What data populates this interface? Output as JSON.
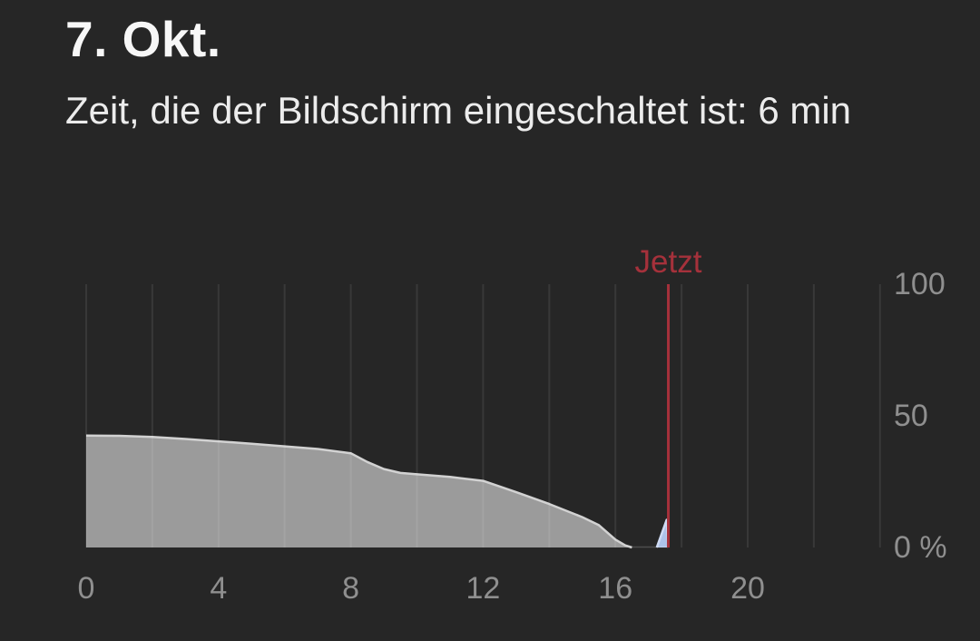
{
  "header": {
    "title": "7. Okt.",
    "subtitle": "Zeit, die der Bildschirm eingeschaltet ist: 6 min"
  },
  "chart_data": {
    "type": "area",
    "title": "7. Okt.",
    "subtitle": "Zeit, die der Bildschirm eingeschaltet ist: 6 min",
    "x_axis": {
      "range_hours": [
        0,
        24
      ],
      "tick_hours": [
        0,
        4,
        8,
        12,
        16,
        20
      ],
      "tick_labels": [
        "0",
        "4",
        "8",
        "12",
        "16",
        "20"
      ],
      "gridline_step_hours": 2,
      "grid": true
    },
    "y_axis": {
      "range_percent": [
        0,
        100
      ],
      "tick_values": [
        100,
        50,
        0
      ],
      "tick_labels": [
        "100",
        "50",
        "0 %"
      ],
      "label_side": "right"
    },
    "now_marker": {
      "label": "Jetzt",
      "hour": 17.6
    },
    "series": [
      {
        "name": "battery-level",
        "fill": "#9b9b9b",
        "edge": "#d2d2d2",
        "points": [
          [
            0,
            42.5
          ],
          [
            1,
            42.4
          ],
          [
            2,
            42.0
          ],
          [
            3,
            41.2
          ],
          [
            4,
            40.3
          ],
          [
            5,
            39.4
          ],
          [
            6,
            38.4
          ],
          [
            7,
            37.4
          ],
          [
            8,
            35.8
          ],
          [
            8.5,
            32.5
          ],
          [
            9,
            29.8
          ],
          [
            9.5,
            28.3
          ],
          [
            10,
            27.8
          ],
          [
            11,
            26.8
          ],
          [
            12,
            25.3
          ],
          [
            13,
            21.0
          ],
          [
            14,
            16.5
          ],
          [
            15,
            11.5
          ],
          [
            15.5,
            8.5
          ],
          [
            16,
            3.0
          ],
          [
            16.3,
            0.8
          ],
          [
            16.5,
            0.0
          ]
        ]
      },
      {
        "name": "charging-spike",
        "fill": "#adc2e9",
        "edge": "#cfdbf4",
        "points": [
          [
            17.25,
            0.0
          ],
          [
            17.55,
            10.5
          ],
          [
            17.6,
            0.0
          ]
        ]
      }
    ],
    "colors": {
      "background": "#262626",
      "gridline": "rgba(255,255,255,0.085)",
      "axis_text": "#8f8f8f",
      "now_red": "#a5313b",
      "baseline": "rgba(255,255,255,0.18)"
    }
  }
}
